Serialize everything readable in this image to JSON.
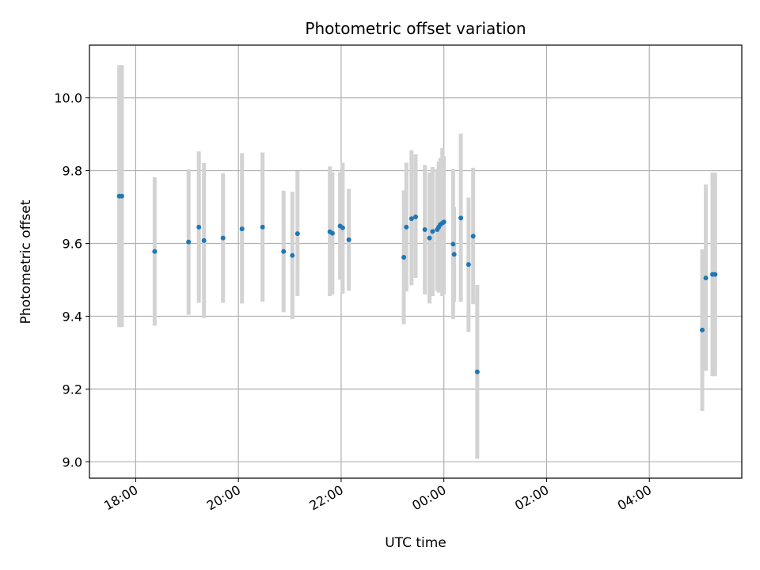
{
  "chart_data": {
    "type": "scatter",
    "title": "Photometric offset variation",
    "xlabel": "UTC time",
    "ylabel": "Photometric offset",
    "x_unit": "hours",
    "xlim": [
      17.1,
      29.8
    ],
    "ylim": [
      8.955,
      10.145
    ],
    "x_ticks": [
      {
        "value": 18,
        "label": "18:00"
      },
      {
        "value": 20,
        "label": "20:00"
      },
      {
        "value": 22,
        "label": "22:00"
      },
      {
        "value": 24,
        "label": "00:00"
      },
      {
        "value": 26,
        "label": "02:00"
      },
      {
        "value": 28,
        "label": "04:00"
      }
    ],
    "y_ticks": [
      {
        "value": 9.0,
        "label": "9.0"
      },
      {
        "value": 9.2,
        "label": "9.2"
      },
      {
        "value": 9.4,
        "label": "9.4"
      },
      {
        "value": 9.6,
        "label": "9.6"
      },
      {
        "value": 9.8,
        "label": "9.8"
      },
      {
        "value": 10.0,
        "label": "10.0"
      }
    ],
    "grid": true,
    "colors": {
      "point": "#1f77b4",
      "errorbar": "#d3d3d3",
      "grid": "#b0b0b0"
    },
    "points": [
      {
        "x": 17.68,
        "y": 9.73,
        "lo": 9.37,
        "hi": 10.09
      },
      {
        "x": 17.73,
        "y": 9.73,
        "lo": 9.37,
        "hi": 10.09
      },
      {
        "x": 18.37,
        "y": 9.578,
        "lo": 9.374,
        "hi": 9.782
      },
      {
        "x": 19.03,
        "y": 9.604,
        "lo": 9.404,
        "hi": 9.804
      },
      {
        "x": 19.23,
        "y": 9.645,
        "lo": 9.437,
        "hi": 9.853
      },
      {
        "x": 19.33,
        "y": 9.608,
        "lo": 9.395,
        "hi": 9.821
      },
      {
        "x": 19.7,
        "y": 9.615,
        "lo": 9.437,
        "hi": 9.793
      },
      {
        "x": 20.07,
        "y": 9.64,
        "lo": 9.435,
        "hi": 9.848
      },
      {
        "x": 20.47,
        "y": 9.645,
        "lo": 9.44,
        "hi": 9.85
      },
      {
        "x": 20.88,
        "y": 9.578,
        "lo": 9.411,
        "hi": 9.745
      },
      {
        "x": 21.05,
        "y": 9.567,
        "lo": 9.392,
        "hi": 9.742
      },
      {
        "x": 21.15,
        "y": 9.627,
        "lo": 9.455,
        "hi": 9.799
      },
      {
        "x": 21.78,
        "y": 9.632,
        "lo": 9.455,
        "hi": 9.812
      },
      {
        "x": 21.83,
        "y": 9.628,
        "lo": 9.46,
        "hi": 9.796
      },
      {
        "x": 21.98,
        "y": 9.648,
        "lo": 9.5,
        "hi": 9.796
      },
      {
        "x": 22.03,
        "y": 9.643,
        "lo": 9.462,
        "hi": 9.822
      },
      {
        "x": 22.15,
        "y": 9.61,
        "lo": 9.47,
        "hi": 9.75
      },
      {
        "x": 23.22,
        "y": 9.562,
        "lo": 9.378,
        "hi": 9.746
      },
      {
        "x": 23.27,
        "y": 9.645,
        "lo": 9.468,
        "hi": 9.822
      },
      {
        "x": 23.37,
        "y": 9.668,
        "lo": 9.485,
        "hi": 9.856
      },
      {
        "x": 23.45,
        "y": 9.673,
        "lo": 9.505,
        "hi": 9.845
      },
      {
        "x": 23.63,
        "y": 9.638,
        "lo": 9.46,
        "hi": 9.816
      },
      {
        "x": 23.72,
        "y": 9.615,
        "lo": 9.435,
        "hi": 9.795
      },
      {
        "x": 23.78,
        "y": 9.633,
        "lo": 9.455,
        "hi": 9.81
      },
      {
        "x": 23.87,
        "y": 9.638,
        "lo": 9.47,
        "hi": 9.805
      },
      {
        "x": 23.9,
        "y": 9.645,
        "lo": 9.465,
        "hi": 9.825
      },
      {
        "x": 23.93,
        "y": 9.652,
        "lo": 9.47,
        "hi": 9.835
      },
      {
        "x": 23.97,
        "y": 9.656,
        "lo": 9.455,
        "hi": 9.862
      },
      {
        "x": 24.0,
        "y": 9.659,
        "lo": 9.46,
        "hi": 9.84
      },
      {
        "x": 24.18,
        "y": 9.598,
        "lo": 9.392,
        "hi": 9.805
      },
      {
        "x": 24.2,
        "y": 9.57,
        "lo": 9.44,
        "hi": 9.7
      },
      {
        "x": 24.33,
        "y": 9.67,
        "lo": 9.44,
        "hi": 9.902
      },
      {
        "x": 24.48,
        "y": 9.542,
        "lo": 9.357,
        "hi": 9.726
      },
      {
        "x": 24.57,
        "y": 9.62,
        "lo": 9.433,
        "hi": 9.808
      },
      {
        "x": 24.65,
        "y": 9.247,
        "lo": 9.008,
        "hi": 9.486
      },
      {
        "x": 29.03,
        "y": 9.362,
        "lo": 9.14,
        "hi": 9.584
      },
      {
        "x": 29.1,
        "y": 9.505,
        "lo": 9.25,
        "hi": 9.762
      },
      {
        "x": 29.23,
        "y": 9.515,
        "lo": 9.235,
        "hi": 9.795
      },
      {
        "x": 29.28,
        "y": 9.515,
        "lo": 9.235,
        "hi": 9.795
      }
    ]
  }
}
